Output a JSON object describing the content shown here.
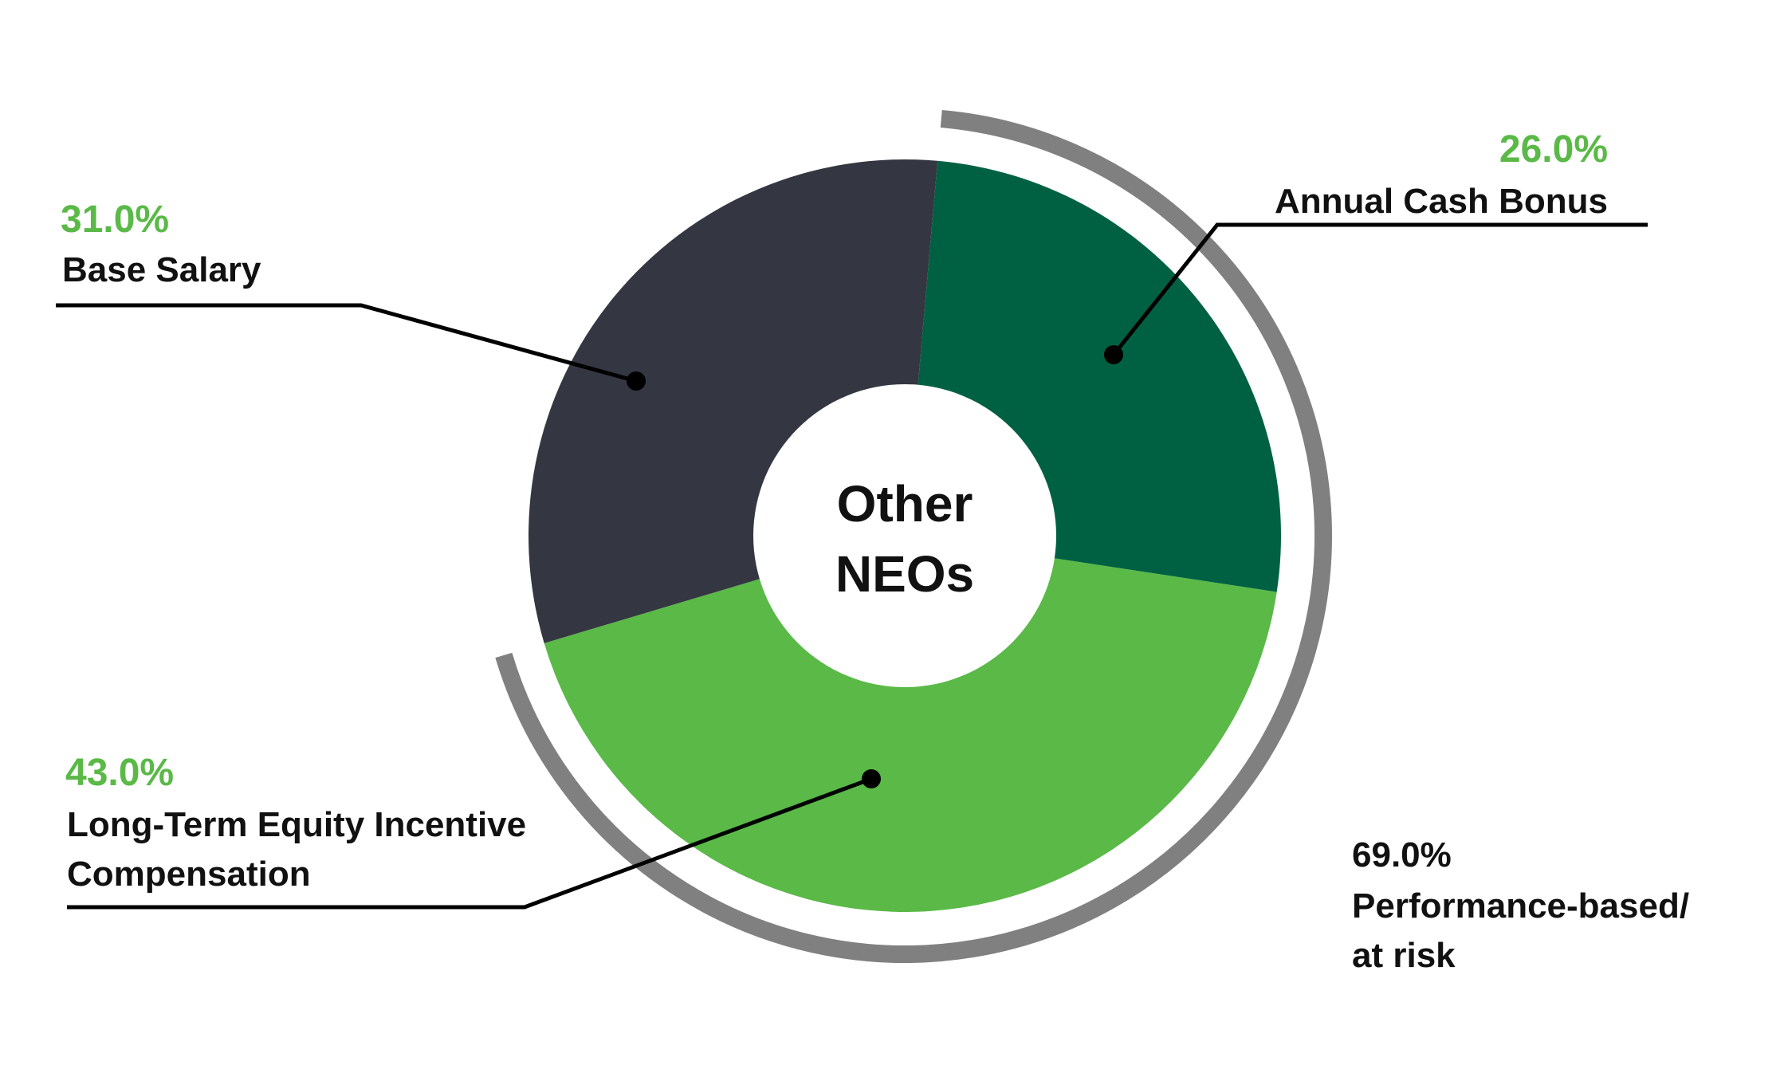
{
  "chart_data": {
    "type": "pie",
    "variant": "donut",
    "center_label_lines": [
      "Other",
      "NEOs"
    ],
    "slices": [
      {
        "label": "Annual Cash Bonus",
        "value": 26.0,
        "display": "26.0%",
        "color": "#006142"
      },
      {
        "label": "Long-Term Equity Incentive Compensation",
        "label_lines": [
          "Long-Term Equity Incentive",
          "Compensation"
        ],
        "value": 43.0,
        "display": "43.0%",
        "color": "#5ab947"
      },
      {
        "label": "Base Salary",
        "value": 31.0,
        "display": "31.0%",
        "color": "#343641"
      }
    ],
    "grouping": {
      "label_lines": [
        "Performance-based/",
        "at risk"
      ],
      "value": 69.0,
      "display": "69.0%",
      "members": [
        "Annual Cash Bonus",
        "Long-Term Equity Incentive Compensation"
      ],
      "arc_color": "#808080"
    },
    "legend": "none"
  }
}
